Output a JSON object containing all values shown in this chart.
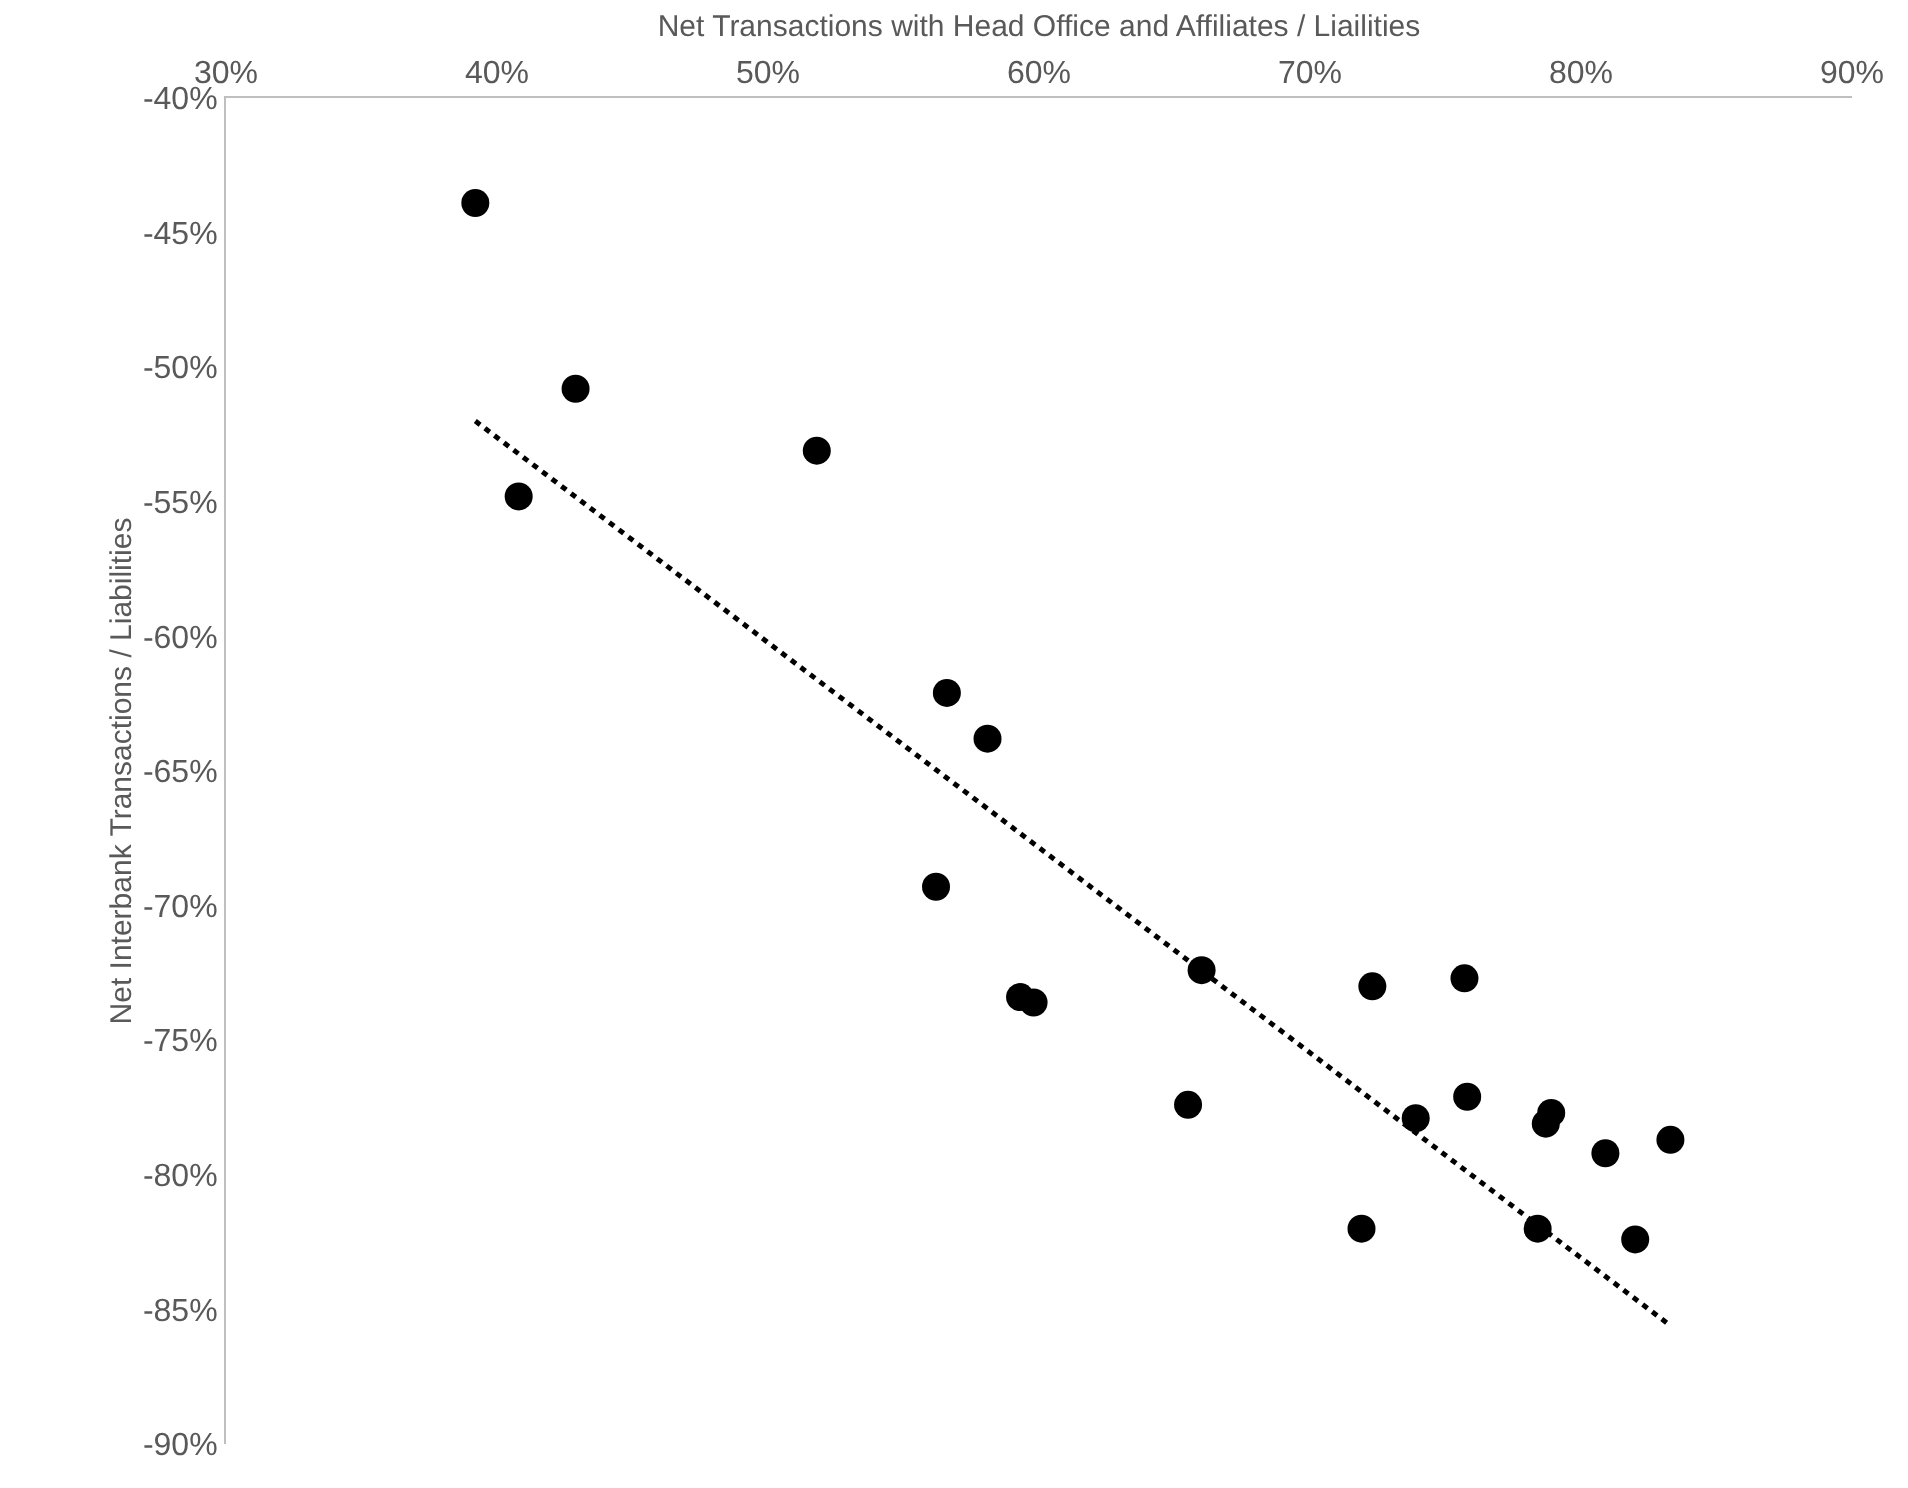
{
  "chart_data": {
    "type": "scatter",
    "xlabel": "Net Transactions with Head Office and Affiliates / Liailities",
    "ylabel": "Net Interbank Transactions / Liabilities",
    "xlim": [
      30,
      90
    ],
    "ylim": [
      -90,
      -40
    ],
    "xticks": [
      {
        "value": 30,
        "label": "30%"
      },
      {
        "value": 40,
        "label": "40%"
      },
      {
        "value": 50,
        "label": "50%"
      },
      {
        "value": 60,
        "label": "60%"
      },
      {
        "value": 70,
        "label": "70%"
      },
      {
        "value": 80,
        "label": "80%"
      },
      {
        "value": 90,
        "label": "90%"
      }
    ],
    "yticks": [
      {
        "value": -40,
        "label": "-40%"
      },
      {
        "value": -45,
        "label": "-45%"
      },
      {
        "value": -50,
        "label": "-50%"
      },
      {
        "value": -55,
        "label": "-55%"
      },
      {
        "value": -60,
        "label": "-60%"
      },
      {
        "value": -65,
        "label": "-65%"
      },
      {
        "value": -70,
        "label": "-70%"
      },
      {
        "value": -75,
        "label": "-75%"
      },
      {
        "value": -80,
        "label": "-80%"
      },
      {
        "value": -85,
        "label": "-85%"
      },
      {
        "value": -90,
        "label": "-90%"
      }
    ],
    "grid": false,
    "marker": "circle",
    "series": [
      {
        "color": "#000000",
        "x": [
          39.2,
          42.9,
          40.8,
          51.8,
          56.6,
          58.1,
          56.2,
          59.3,
          59.8,
          65.5,
          66.0,
          72.3,
          71.9,
          73.9,
          75.7,
          75.8,
          78.7,
          78.9,
          78.4,
          80.9,
          82.0,
          83.3
        ],
        "values": [
          -43.9,
          -50.8,
          -54.8,
          -53.1,
          -62.1,
          -63.8,
          -69.3,
          -73.4,
          -73.6,
          -77.4,
          -72.4,
          -73.0,
          -82.0,
          -77.9,
          -72.7,
          -77.1,
          -78.1,
          -77.7,
          -82.0,
          -79.2,
          -82.4,
          -78.7
        ]
      },
      {
        "type": "line",
        "color": "#000000",
        "line_style": "dotted",
        "marker": "none",
        "x": [
          39.2,
          83.3
        ],
        "values": [
          -52.0,
          -85.6
        ]
      }
    ]
  }
}
